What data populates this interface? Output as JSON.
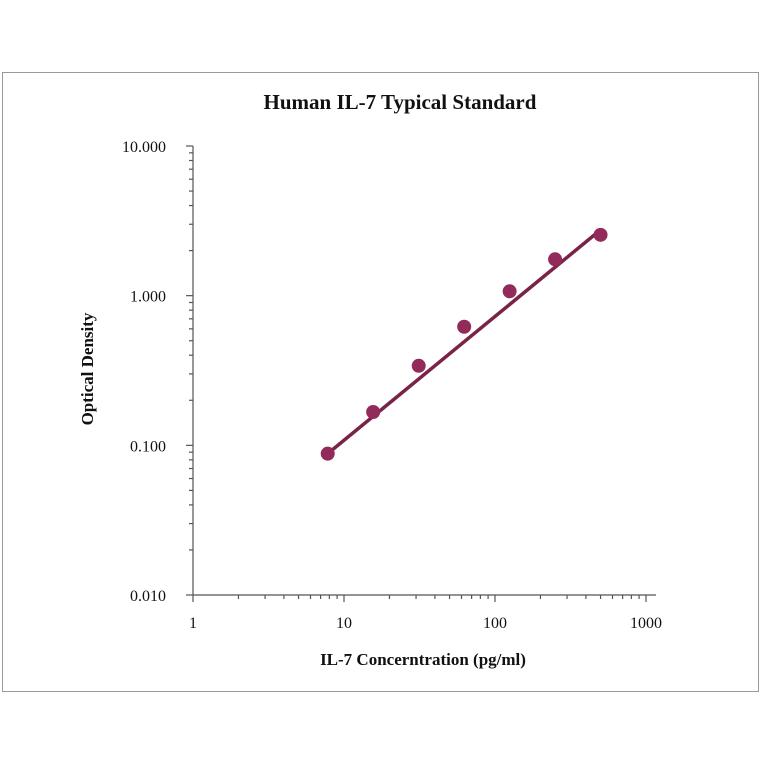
{
  "chart_data": {
    "type": "scatter",
    "title": "Human IL-7 Typical Standard",
    "xlabel": "IL-7 Concerntration (pg/ml)",
    "ylabel": "Optical Density",
    "x_scale": "log",
    "y_scale": "log",
    "xlim": [
      1,
      1000
    ],
    "ylim": [
      0.01,
      10
    ],
    "x_ticks": [
      1,
      10,
      100,
      1000
    ],
    "x_tick_labels": [
      "1",
      "10",
      "100",
      "1000"
    ],
    "y_ticks": [
      0.01,
      0.1,
      1,
      10
    ],
    "y_tick_labels": [
      "0.010",
      "0.100",
      "1.000",
      "10.000"
    ],
    "grid": false,
    "series": [
      {
        "x": [
          7.8,
          15.6,
          31.25,
          62.5,
          125,
          250,
          500
        ],
        "y": [
          0.088,
          0.167,
          0.34,
          0.62,
          1.07,
          1.75,
          2.55
        ],
        "trendline": {
          "x": [
            7.8,
            500
          ],
          "y": [
            0.088,
            2.75
          ]
        }
      }
    ],
    "colors": {
      "marker": "#922a5a",
      "line": "#7a2348"
    }
  }
}
